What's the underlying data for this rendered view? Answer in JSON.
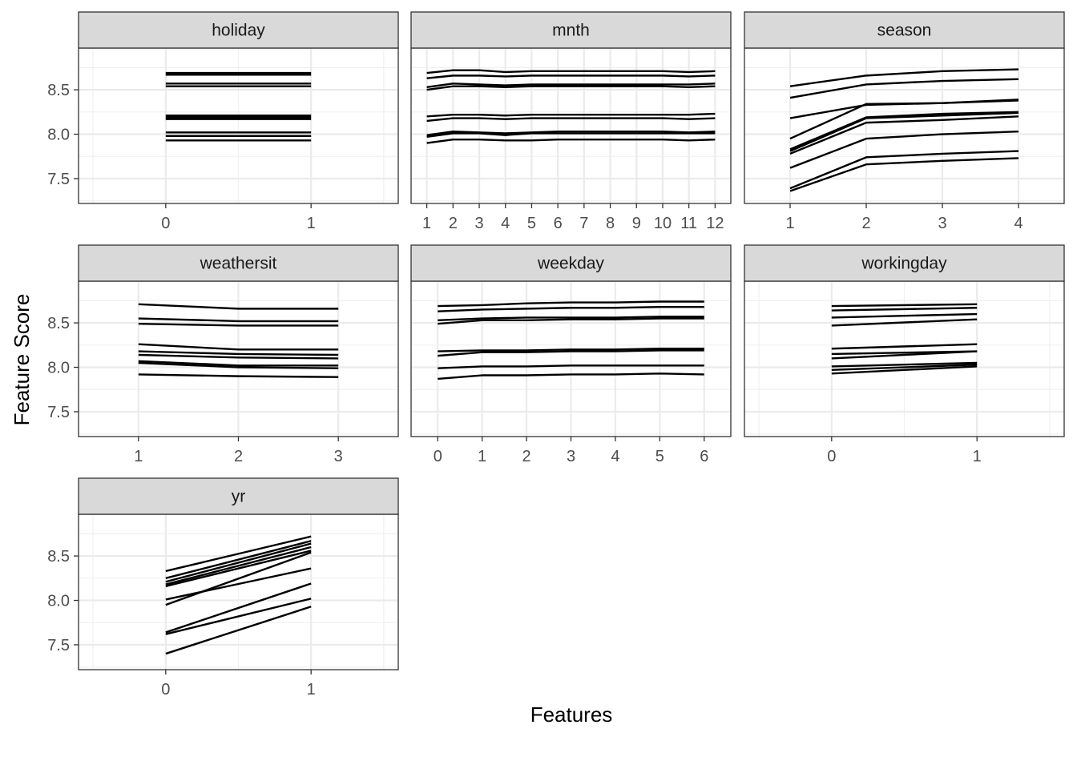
{
  "chart_data": {
    "type": "line",
    "layout": "facet-wrap",
    "xlabel": "Features",
    "ylabel": "Feature Score",
    "ylim": [
      7.22,
      8.97
    ],
    "yticks": [
      7.5,
      8.0,
      8.5
    ],
    "ytick_labels": [
      "7.5",
      "8.0",
      "8.5"
    ],
    "grid": true,
    "line_color": "#000000",
    "panels": [
      {
        "name": "holiday",
        "x": [
          "0",
          "1"
        ],
        "series": [
          [
            8.69,
            8.69
          ],
          [
            8.67,
            8.67
          ],
          [
            8.57,
            8.57
          ],
          [
            8.54,
            8.54
          ],
          [
            8.21,
            8.21
          ],
          [
            8.19,
            8.19
          ],
          [
            8.17,
            8.17
          ],
          [
            8.02,
            8.02
          ],
          [
            7.98,
            7.98
          ],
          [
            7.93,
            7.93
          ]
        ]
      },
      {
        "name": "mnth",
        "x": [
          "1",
          "2",
          "3",
          "4",
          "5",
          "6",
          "7",
          "8",
          "9",
          "10",
          "11",
          "12"
        ],
        "series": [
          [
            8.69,
            8.72,
            8.72,
            8.7,
            8.71,
            8.71,
            8.71,
            8.71,
            8.71,
            8.71,
            8.7,
            8.71
          ],
          [
            8.63,
            8.66,
            8.66,
            8.65,
            8.66,
            8.66,
            8.66,
            8.66,
            8.66,
            8.66,
            8.65,
            8.66
          ],
          [
            8.53,
            8.57,
            8.56,
            8.55,
            8.56,
            8.56,
            8.56,
            8.56,
            8.56,
            8.56,
            8.56,
            8.57
          ],
          [
            8.5,
            8.54,
            8.54,
            8.53,
            8.54,
            8.54,
            8.54,
            8.54,
            8.54,
            8.54,
            8.53,
            8.54
          ],
          [
            8.2,
            8.22,
            8.22,
            8.21,
            8.22,
            8.22,
            8.22,
            8.22,
            8.22,
            8.22,
            8.22,
            8.23
          ],
          [
            8.15,
            8.18,
            8.18,
            8.17,
            8.18,
            8.18,
            8.18,
            8.18,
            8.18,
            8.18,
            8.17,
            8.18
          ],
          [
            7.99,
            8.03,
            8.02,
            8.01,
            8.02,
            8.03,
            8.03,
            8.03,
            8.03,
            8.03,
            8.02,
            8.03
          ],
          [
            7.97,
            8.01,
            8.01,
            7.99,
            8.01,
            8.01,
            8.01,
            8.01,
            8.01,
            8.01,
            8.01,
            8.01
          ],
          [
            7.9,
            7.94,
            7.94,
            7.93,
            7.93,
            7.94,
            7.94,
            7.94,
            7.94,
            7.94,
            7.93,
            7.94
          ]
        ]
      },
      {
        "name": "season",
        "x": [
          "1",
          "2",
          "3",
          "4"
        ],
        "series": [
          [
            8.54,
            8.66,
            8.71,
            8.73
          ],
          [
            8.41,
            8.56,
            8.6,
            8.62
          ],
          [
            8.18,
            8.33,
            8.35,
            8.39
          ],
          [
            7.95,
            8.34,
            8.35,
            8.38
          ],
          [
            7.83,
            8.19,
            8.23,
            8.25
          ],
          [
            7.81,
            8.18,
            8.21,
            8.24
          ],
          [
            7.78,
            8.13,
            8.16,
            8.2
          ],
          [
            7.62,
            7.95,
            8.0,
            8.03
          ],
          [
            7.39,
            7.74,
            7.78,
            7.81
          ],
          [
            7.36,
            7.66,
            7.7,
            7.73
          ]
        ]
      },
      {
        "name": "weathersit",
        "x": [
          "1",
          "2",
          "3"
        ],
        "series": [
          [
            8.71,
            8.66,
            8.66
          ],
          [
            8.55,
            8.52,
            8.52
          ],
          [
            8.49,
            8.47,
            8.47
          ],
          [
            8.26,
            8.2,
            8.2
          ],
          [
            8.18,
            8.15,
            8.14
          ],
          [
            8.14,
            8.11,
            8.1
          ],
          [
            8.07,
            8.02,
            8.02
          ],
          [
            8.05,
            8.0,
            7.99
          ],
          [
            7.92,
            7.9,
            7.89
          ]
        ]
      },
      {
        "name": "weekday",
        "x": [
          "0",
          "1",
          "2",
          "3",
          "4",
          "5",
          "6"
        ],
        "series": [
          [
            8.69,
            8.7,
            8.72,
            8.73,
            8.73,
            8.74,
            8.74
          ],
          [
            8.63,
            8.65,
            8.66,
            8.67,
            8.67,
            8.68,
            8.68
          ],
          [
            8.53,
            8.55,
            8.56,
            8.56,
            8.56,
            8.57,
            8.57
          ],
          [
            8.49,
            8.53,
            8.53,
            8.54,
            8.54,
            8.55,
            8.55
          ],
          [
            8.18,
            8.19,
            8.19,
            8.2,
            8.2,
            8.21,
            8.21
          ],
          [
            8.13,
            8.17,
            8.17,
            8.18,
            8.18,
            8.19,
            8.19
          ],
          [
            7.99,
            8.01,
            8.01,
            8.02,
            8.02,
            8.02,
            8.02
          ],
          [
            7.87,
            7.91,
            7.91,
            7.92,
            7.92,
            7.93,
            7.92
          ]
        ]
      },
      {
        "name": "workingday",
        "x": [
          "0",
          "1"
        ],
        "series": [
          [
            8.69,
            8.71
          ],
          [
            8.64,
            8.67
          ],
          [
            8.56,
            8.6
          ],
          [
            8.47,
            8.54
          ],
          [
            8.21,
            8.26
          ],
          [
            8.15,
            8.18
          ],
          [
            8.1,
            8.18
          ],
          [
            8.01,
            8.05
          ],
          [
            7.97,
            8.03
          ],
          [
            7.93,
            8.01
          ]
        ]
      },
      {
        "name": "yr",
        "x": [
          "0",
          "1"
        ],
        "series": [
          [
            8.33,
            8.72
          ],
          [
            8.25,
            8.67
          ],
          [
            8.21,
            8.64
          ],
          [
            8.18,
            8.6
          ],
          [
            8.16,
            8.56
          ],
          [
            7.95,
            8.54
          ],
          [
            8.01,
            8.36
          ],
          [
            7.64,
            8.19
          ],
          [
            7.62,
            8.02
          ],
          [
            7.4,
            7.93
          ]
        ]
      }
    ]
  }
}
